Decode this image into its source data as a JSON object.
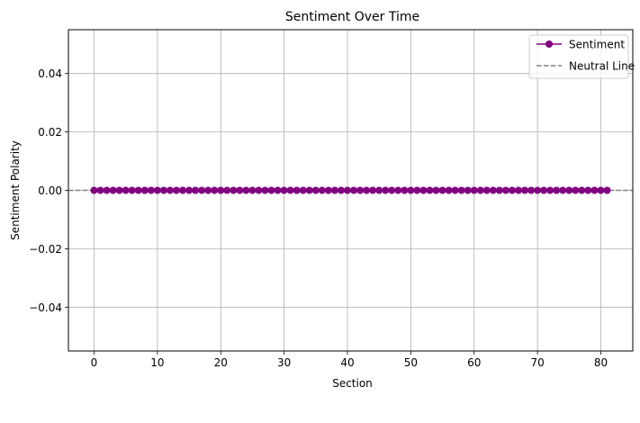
{
  "chart_data": {
    "type": "line",
    "title": "Sentiment Over Time",
    "xlabel": "Section",
    "ylabel": "Sentiment Polarity",
    "xlim": [
      -4.05,
      85.05
    ],
    "ylim": [
      -0.055,
      0.055
    ],
    "x_ticks": [
      0,
      10,
      20,
      30,
      40,
      50,
      60,
      70,
      80
    ],
    "y_ticks": [
      -0.04,
      -0.02,
      0.0,
      0.02,
      0.04
    ],
    "y_tick_labels": [
      "−0.04",
      "−0.02",
      "0.00",
      "0.02",
      "0.04"
    ],
    "grid": true,
    "legend_position": "top-right",
    "series": [
      {
        "name": "Sentiment",
        "color": "#800080",
        "marker": "circle",
        "x_start": 0,
        "x_end": 81,
        "value": 0.0
      }
    ],
    "reference_lines": [
      {
        "name": "Neutral Line",
        "y": 0.0,
        "color": "#808080",
        "style": "dashed"
      }
    ]
  }
}
